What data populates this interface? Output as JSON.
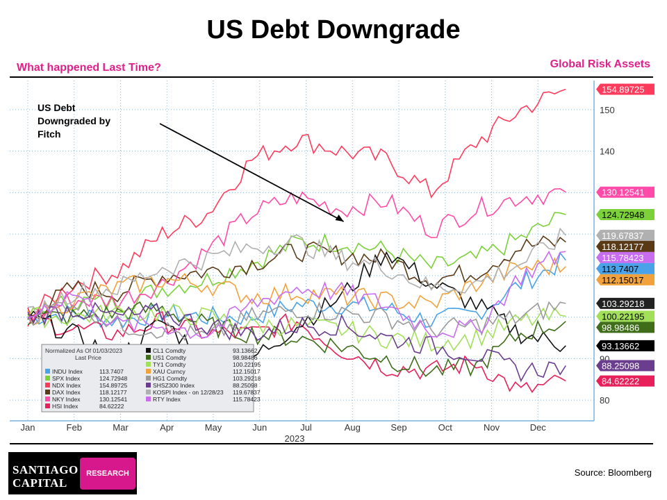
{
  "header": {
    "title": "US Debt Downgrade",
    "subtitle_left": "What happened Last Time?",
    "subtitle_right": "Global Risk Assets"
  },
  "annotation": {
    "lines": [
      "US Debt",
      "Downgraded by",
      "Fitch"
    ]
  },
  "logo": {
    "line1": "SANTIAGO",
    "line2": "CAPITAL",
    "badge": "RESEARCH"
  },
  "source": "Source: Bloomberg",
  "colors": {
    "accent": "#e0208a",
    "grid": "#8ab4d6",
    "axis": "#5aa0d8"
  },
  "chart_data": {
    "type": "line",
    "x_labels": [
      "Jan",
      "Feb",
      "Mar",
      "Apr",
      "May",
      "Jun",
      "Jul",
      "Aug",
      "Sep",
      "Oct",
      "Nov",
      "Dec"
    ],
    "x_year_label": "2023",
    "ylim": [
      75,
      157
    ],
    "y_ticks": [
      80,
      90,
      100,
      110,
      120,
      130,
      140,
      150
    ],
    "grid": true,
    "y_axis_position": "right",
    "legend": {
      "placement": "bottom-left",
      "header": "Normalized As Of 01/03/2023",
      "subheader": "Last Price",
      "footnote": "on 12/28/23",
      "columns": 2
    },
    "series": [
      {
        "name": "INDU Index",
        "last": "113.7407",
        "color": "#4aa3e8",
        "values": [
          100,
          101,
          99,
          101,
          100,
          100,
          103,
          103,
          102,
          99,
          101,
          108,
          113.7
        ]
      },
      {
        "name": "SPX Index",
        "last": "124.72948",
        "color": "#7cd13a",
        "values": [
          100,
          104,
          103,
          107,
          109,
          113,
          118,
          118,
          116,
          112,
          114,
          119,
          124.7
        ]
      },
      {
        "name": "NDX Index",
        "last": "154.89725",
        "color": "#ff3b5c",
        "values": [
          100,
          108,
          111,
          120,
          125,
          138,
          143,
          140,
          138,
          130,
          142,
          150,
          154.9
        ]
      },
      {
        "name": "DAX Index",
        "last": "118.12177",
        "color": "#5a3a16",
        "values": [
          100,
          107,
          106,
          110,
          111,
          113,
          116,
          115,
          114,
          109,
          111,
          117,
          118.1
        ]
      },
      {
        "name": "NKY Index",
        "last": "130.12541",
        "color": "#ff4aa8",
        "values": [
          100,
          104,
          104,
          108,
          116,
          125,
          129,
          126,
          128,
          121,
          126,
          129,
          130.1
        ]
      },
      {
        "name": "HSI Index",
        "last": "84.62222",
        "color": "#e8205a",
        "values": [
          100,
          97,
          96,
          99,
          96,
          96,
          99,
          92,
          88,
          87,
          89,
          82,
          84.6
        ]
      },
      {
        "name": "CL1 Comdty",
        "last": "93.13662",
        "color": "#111111",
        "values": [
          100,
          96,
          90,
          99,
          90,
          90,
          98,
          105,
          116,
          108,
          103,
          96,
          93.1
        ]
      },
      {
        "name": "US1 Comdty",
        "last": "98.98486",
        "color": "#3f6d1a",
        "values": [
          100,
          100,
          101,
          102,
          98,
          96,
          95,
          93,
          90,
          87,
          88,
          96,
          98.98
        ]
      },
      {
        "name": "TY1 Comdty",
        "last": "100.22195",
        "color": "#a3e05a",
        "values": [
          100,
          100,
          101,
          101,
          100,
          98,
          98,
          97,
          95,
          94,
          95,
          99,
          100.2
        ]
      },
      {
        "name": "XAU Curncy",
        "last": "112.15017",
        "color": "#f2a23c",
        "values": [
          100,
          104,
          107,
          109,
          108,
          105,
          106,
          105,
          104,
          103,
          108,
          112,
          112.2
        ]
      },
      {
        "name": "HG1 Comdty",
        "last": "103.29218",
        "color": "#9a9a9a",
        "values": [
          100,
          104,
          98,
          97,
          95,
          100,
          102,
          101,
          100,
          97,
          98,
          100,
          103.3
        ]
      },
      {
        "name": "SHSZ300 Index",
        "last": "88.25098",
        "color": "#6a3d8f",
        "values": [
          100,
          102,
          100,
          101,
          98,
          96,
          98,
          98,
          95,
          93,
          91,
          87,
          88.3
        ]
      },
      {
        "name": "KOSPI Index - on 12/28/23",
        "last": "119.67837",
        "color": "#b0b0b0",
        "values": [
          100,
          106,
          107,
          112,
          114,
          117,
          118,
          114,
          112,
          107,
          108,
          113,
          119.7
        ]
      },
      {
        "name": "RTY Index",
        "last": "115.78423",
        "color": "#c86cf0",
        "values": [
          100,
          106,
          98,
          98,
          96,
          103,
          107,
          106,
          103,
          97,
          97,
          110,
          115.8
        ]
      }
    ],
    "end_labels": [
      {
        "text": "154.89725",
        "bg": "#ff3b5c",
        "fg": "#ffffff",
        "y": 154.9
      },
      {
        "text": "130.12541",
        "bg": "#ff4aa8",
        "fg": "#ffffff",
        "y": 130.1
      },
      {
        "text": "124.72948",
        "bg": "#7cd13a",
        "fg": "#000000",
        "y": 124.7
      },
      {
        "text": "119.67837",
        "bg": "#b0b0b0",
        "fg": "#ffffff",
        "y": 119.7
      },
      {
        "text": "118.12177",
        "bg": "#5a3a16",
        "fg": "#ffffff",
        "y": 118.1
      },
      {
        "text": "115.78423",
        "bg": "#c86cf0",
        "fg": "#ffffff",
        "y": 115.8
      },
      {
        "text": "113.7407",
        "bg": "#4aa3e8",
        "fg": "#000000",
        "y": 113.7
      },
      {
        "text": "112.15017",
        "bg": "#f2a23c",
        "fg": "#000000",
        "y": 112.2
      },
      {
        "text": "103.29218",
        "bg": "#222222",
        "fg": "#ffffff",
        "y": 103.3
      },
      {
        "text": "100.22195",
        "bg": "#a3e05a",
        "fg": "#000000",
        "y": 100.2
      },
      {
        "text": "98.98486",
        "bg": "#3f6d1a",
        "fg": "#ffffff",
        "y": 99.0
      },
      {
        "text": "93.13662",
        "bg": "#000000",
        "fg": "#ffffff",
        "y": 93.1
      },
      {
        "text": "88.25098",
        "bg": "#6a3d8f",
        "fg": "#ffffff",
        "y": 88.3
      },
      {
        "text": "84.62222",
        "bg": "#e8205a",
        "fg": "#ffffff",
        "y": 84.6
      }
    ],
    "event": {
      "x_month": 6.9,
      "label": "US Debt Downgraded by Fitch"
    }
  }
}
